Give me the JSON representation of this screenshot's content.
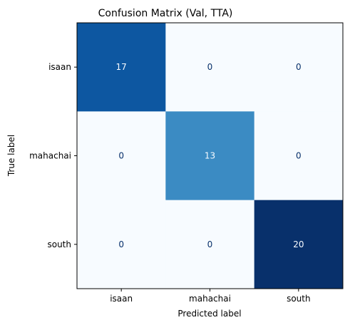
{
  "chart_data": {
    "type": "heatmap",
    "title": "Confusion Matrix (Val, TTA)",
    "xlabel": "Predicted label",
    "ylabel": "True label",
    "x_categories": [
      "isaan",
      "mahachai",
      "south"
    ],
    "y_categories": [
      "isaan",
      "mahachai",
      "south"
    ],
    "values": [
      [
        17,
        0,
        0
      ],
      [
        0,
        13,
        0
      ],
      [
        0,
        0,
        20
      ]
    ],
    "colormap": "Blues",
    "value_range": [
      0,
      20
    ],
    "grid": false,
    "colorbar": false
  }
}
